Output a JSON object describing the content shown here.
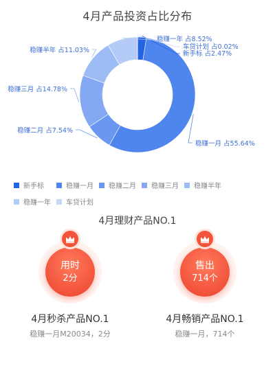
{
  "chart_data": {
    "type": "pie",
    "variant": "donut",
    "title": "4月产品投资占比分布",
    "slices": [
      {
        "name": "新手标",
        "value": 2.47,
        "label": "新手标 占2.47%",
        "color": "#2563e5"
      },
      {
        "name": "稳赚一月",
        "value": 55.64,
        "label": "稳赚一月 占55.64%",
        "color": "#4f86ee"
      },
      {
        "name": "稳赚二月",
        "value": 7.54,
        "label": "稳赚二月 占7.54%",
        "color": "#6a97f0"
      },
      {
        "name": "稳赚三月",
        "value": 14.78,
        "label": "稳赚三月 占14.78%",
        "color": "#84a9f2"
      },
      {
        "name": "稳赚半年",
        "value": 11.03,
        "label": "稳赚半年 占11.03%",
        "color": "#9dbbf5"
      },
      {
        "name": "稳赚一年",
        "value": 8.52,
        "label": "稳赚一年 占8.52%",
        "color": "#b4cbf7"
      },
      {
        "name": "车贷计划",
        "value": 0.02,
        "label": "车贷计划 占0.02%",
        "color": "#c9d9fa"
      }
    ],
    "legend_position": "bottom"
  },
  "section_title": "4月理财产品NO.1",
  "cards": [
    {
      "badge_icon": "crown-icon",
      "top_text": "用时",
      "bottom_text": "2分",
      "title": "4月秒杀产品NO.1",
      "subtitle": "稳赚一月M20034，2分",
      "accent": "#f2533b"
    },
    {
      "badge_icon": "crown-icon",
      "top_text": "售出",
      "bottom_text": "714个",
      "title": "4月畅销产品NO.1",
      "subtitle": "稳赚一月，714个",
      "accent": "#f2533b"
    }
  ]
}
